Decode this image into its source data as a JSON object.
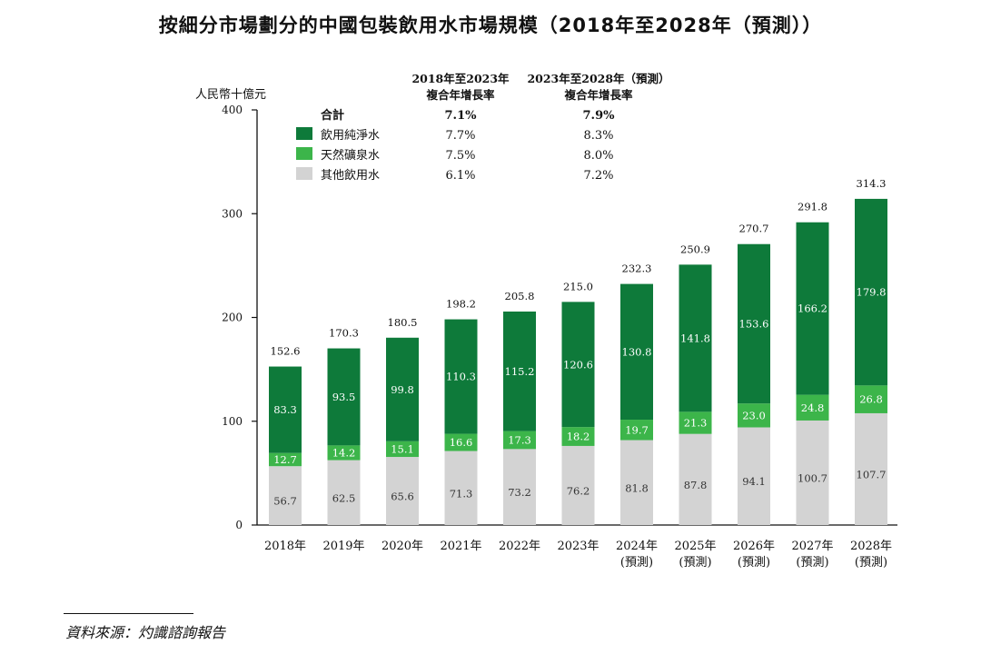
{
  "title": "按細分市場劃分的中國包裝飲用水市場規模（2018年至2028年（預測））",
  "source": "資料來源：灼識諮詢報告",
  "chart_data": {
    "type": "bar",
    "stacked": true,
    "ylabel": "人民幣十億元",
    "ylim": [
      0,
      400
    ],
    "yticks": [
      "0",
      "100",
      "200",
      "300",
      "400"
    ],
    "categories": [
      "2018年",
      "2019年",
      "2020年",
      "2021年",
      "2022年",
      "2023年",
      "2024年\n(預測)",
      "2025年\n(預測)",
      "2026年\n(預測)",
      "2027年\n(預測)",
      "2028年\n(預測)"
    ],
    "series": [
      {
        "name": "其他飲用水",
        "color": "#d3d3d3",
        "values": [
          56.7,
          62.5,
          65.6,
          71.3,
          73.2,
          76.2,
          81.8,
          87.8,
          94.1,
          100.7,
          107.7
        ],
        "labels": [
          "56.7",
          "62.5",
          "65.6",
          "71.3",
          "73.2",
          "76.2",
          "81.8",
          "87.8",
          "94.1",
          "100.7",
          "107.7"
        ]
      },
      {
        "name": "天然礦泉水",
        "color": "#3cb54a",
        "values": [
          12.7,
          14.2,
          15.1,
          16.6,
          17.3,
          18.2,
          19.7,
          21.3,
          23.0,
          24.8,
          26.8
        ],
        "labels": [
          "12.7",
          "14.2",
          "15.1",
          "16.6",
          "17.3",
          "18.2",
          "19.7",
          "21.3",
          "23.0",
          "24.8",
          "26.8"
        ]
      },
      {
        "name": "飲用純淨水",
        "color": "#0e7a3a",
        "values": [
          83.3,
          93.5,
          99.8,
          110.3,
          115.2,
          120.6,
          130.8,
          141.8,
          153.6,
          166.2,
          179.8
        ],
        "labels": [
          "83.3",
          "93.5",
          "99.8",
          "110.3",
          "115.2",
          "120.6",
          "130.8",
          "141.8",
          "153.6",
          "166.2",
          "179.8"
        ]
      }
    ],
    "totals": [
      "152.6",
      "170.3",
      "180.5",
      "198.2",
      "205.8",
      "215.0",
      "232.3",
      "250.9",
      "270.7",
      "291.8",
      "314.3"
    ],
    "legend_position": "top-left",
    "cagr_table": {
      "headers": [
        "2018年至2023年\n複合年增長率",
        "2023年至2028年（預測）\n複合年增長率"
      ],
      "rows": [
        {
          "label": "合計",
          "values": [
            "7.1%",
            "7.9%"
          ],
          "bold": true
        },
        {
          "label": "飲用純淨水",
          "color": "#0e7a3a",
          "values": [
            "7.7%",
            "8.3%"
          ]
        },
        {
          "label": "天然礦泉水",
          "color": "#3cb54a",
          "values": [
            "7.5%",
            "8.0%"
          ]
        },
        {
          "label": "其他飲用水",
          "color": "#d3d3d3",
          "values": [
            "6.1%",
            "7.2%"
          ]
        }
      ]
    }
  }
}
